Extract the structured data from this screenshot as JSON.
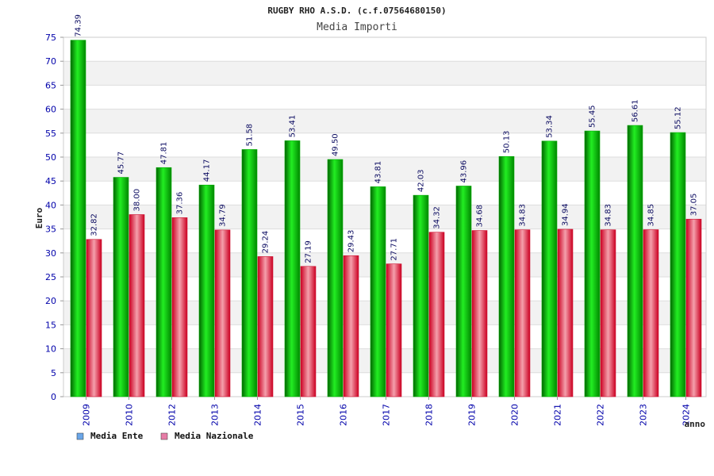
{
  "chart_data": {
    "type": "bar",
    "title": "RUGBY RHO A.S.D. (c.f.07564680150)",
    "subtitle": "Media Importi",
    "xlabel": "anno",
    "ylabel": "Euro",
    "ylim": [
      0,
      75
    ],
    "yticks": [
      0,
      5,
      10,
      15,
      20,
      25,
      30,
      35,
      40,
      45,
      50,
      55,
      60,
      65,
      70,
      75
    ],
    "grid": true,
    "legend_position": "bottom-left",
    "categories": [
      "2009",
      "2010",
      "2012",
      "2013",
      "2014",
      "2015",
      "2016",
      "2017",
      "2018",
      "2019",
      "2020",
      "2021",
      "2022",
      "2023",
      "2024"
    ],
    "series": [
      {
        "name": "Media Ente",
        "color": "#00bb00",
        "legend_color": "#6aa6e8",
        "values": [
          74.39,
          45.77,
          47.81,
          44.17,
          51.58,
          53.41,
          49.5,
          43.81,
          42.03,
          43.96,
          50.13,
          53.34,
          55.45,
          56.61,
          55.12
        ],
        "labels": [
          "74.39",
          "45.77",
          "47.81",
          "44.17",
          "51.58",
          "53.41",
          "49.50",
          "43.81",
          "42.03",
          "43.96",
          "50.13",
          "53.34",
          "55.45",
          "56.61",
          "55.12"
        ]
      },
      {
        "name": "Media Nazionale",
        "color": "#dd2233",
        "legend_color": "#e67ca6",
        "values": [
          32.82,
          38.0,
          37.36,
          34.79,
          29.24,
          27.19,
          29.43,
          27.71,
          34.32,
          34.68,
          34.83,
          34.94,
          34.83,
          34.85,
          37.05
        ],
        "labels": [
          "32.82",
          "38.00",
          "37.36",
          "34.79",
          "29.24",
          "27.19",
          "29.43",
          "27.71",
          "34.32",
          "34.68",
          "34.83",
          "34.94",
          "34.83",
          "34.85",
          "37.05"
        ]
      }
    ]
  }
}
